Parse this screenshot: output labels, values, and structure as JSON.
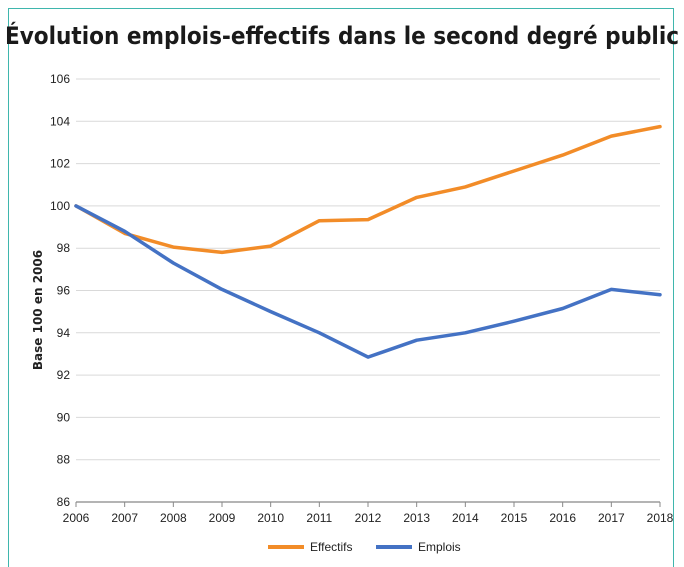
{
  "chart_data": {
    "type": "line",
    "title": "Évolution emplois-effectifs dans le second degré public",
    "xlabel": "",
    "ylabel": "Base 100 en 2006",
    "x": [
      2006,
      2007,
      2008,
      2009,
      2010,
      2011,
      2012,
      2013,
      2014,
      2015,
      2016,
      2017,
      2018
    ],
    "ylim": [
      86,
      106
    ],
    "yticks": [
      86,
      88,
      90,
      92,
      94,
      96,
      98,
      100,
      102,
      104,
      106
    ],
    "grid": true,
    "legend_position": "bottom",
    "series": [
      {
        "name": "Effectifs",
        "color": "#f28c28",
        "values": [
          100,
          98.7,
          98.05,
          97.8,
          98.1,
          99.3,
          99.35,
          100.4,
          100.9,
          101.65,
          102.4,
          103.3,
          103.75
        ]
      },
      {
        "name": "Emplois",
        "color": "#4472c4",
        "values": [
          100,
          98.8,
          97.3,
          96.05,
          95.0,
          94.0,
          92.85,
          93.65,
          94.0,
          94.55,
          95.15,
          96.05,
          95.8
        ]
      }
    ]
  },
  "colors": {
    "frame": "#3fb6ad",
    "grid": "#d9d9d9",
    "axis": "#888888"
  }
}
